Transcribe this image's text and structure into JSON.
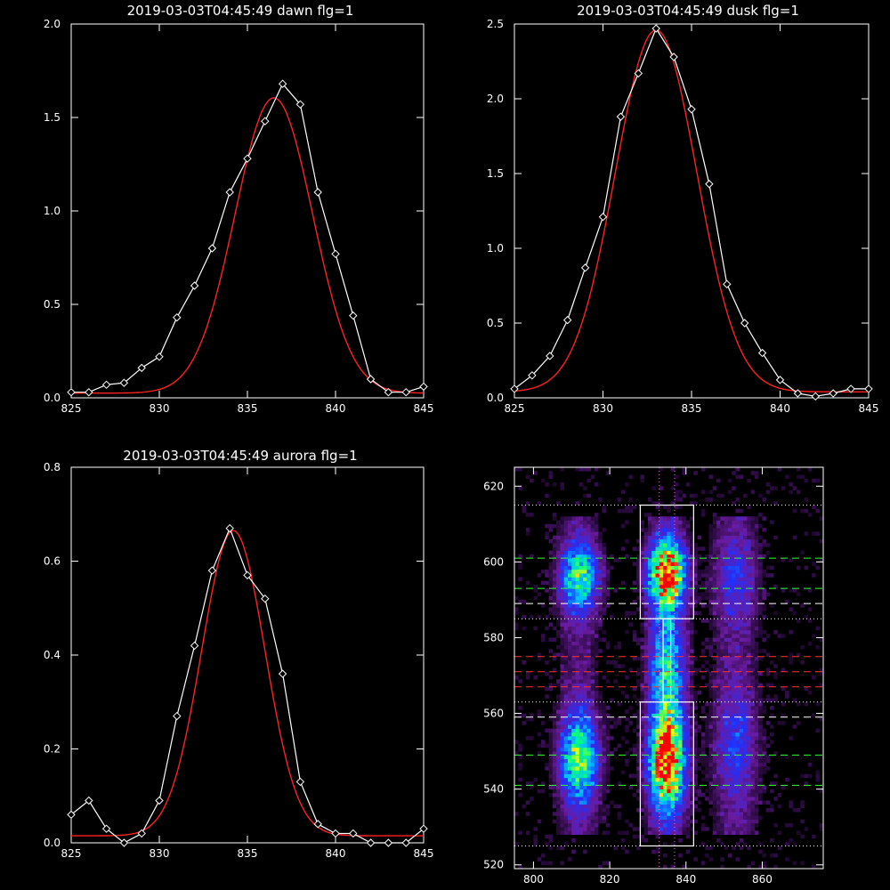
{
  "chart_data": [
    {
      "type": "line",
      "title": "2019-03-03T04:45:49 dawn flg=1",
      "xlabel": "",
      "ylabel": "",
      "xlim": [
        825,
        845
      ],
      "ylim": [
        0,
        2.0
      ],
      "xticks": [
        "825",
        "830",
        "835",
        "840",
        "845"
      ],
      "yticks": [
        "0.0",
        "0.5",
        "1.0",
        "1.5",
        "2.0"
      ],
      "grid": false,
      "series": [
        {
          "kind": "data",
          "color": "#ffffff",
          "marker": "diamond",
          "x": [
            825,
            826,
            827,
            828,
            829,
            830,
            831,
            832,
            833,
            834,
            835,
            836,
            837,
            838,
            839,
            840,
            841,
            842,
            843,
            844,
            845
          ],
          "y": [
            0.03,
            0.03,
            0.07,
            0.08,
            0.16,
            0.22,
            0.43,
            0.6,
            0.8,
            1.1,
            1.28,
            1.48,
            1.68,
            1.57,
            1.1,
            0.77,
            0.44,
            0.1,
            0.03,
            0.03,
            0.06
          ]
        },
        {
          "kind": "fit",
          "color": "#ff2020",
          "gaussian": {
            "amplitude": 1.58,
            "center": 836.5,
            "sigma": 2.2,
            "baseline": 0.025
          }
        }
      ]
    },
    {
      "type": "line",
      "title": "2019-03-03T04:45:49 dusk flg=1",
      "xlabel": "",
      "ylabel": "",
      "xlim": [
        825,
        845
      ],
      "ylim": [
        0,
        2.5
      ],
      "xticks": [
        "825",
        "830",
        "835",
        "840",
        "845"
      ],
      "yticks": [
        "0.0",
        "0.5",
        "1.0",
        "1.5",
        "2.0",
        "2.5"
      ],
      "grid": false,
      "series": [
        {
          "kind": "data",
          "color": "#ffffff",
          "marker": "diamond",
          "x": [
            825,
            826,
            827,
            828,
            829,
            830,
            831,
            832,
            833,
            834,
            835,
            836,
            837,
            838,
            839,
            840,
            841,
            842,
            843,
            844,
            845
          ],
          "y": [
            0.06,
            0.15,
            0.28,
            0.52,
            0.87,
            1.21,
            1.88,
            2.17,
            2.47,
            2.28,
            1.93,
            1.43,
            0.76,
            0.5,
            0.3,
            0.12,
            0.03,
            0.01,
            0.03,
            0.06,
            0.06
          ]
        },
        {
          "kind": "fit",
          "color": "#ff2020",
          "gaussian": {
            "amplitude": 2.42,
            "center": 833.0,
            "sigma": 2.3,
            "baseline": 0.04
          }
        }
      ]
    },
    {
      "type": "line",
      "title": "2019-03-03T04:45:49 aurora flg=1",
      "xlabel": "",
      "ylabel": "",
      "xlim": [
        825,
        845
      ],
      "ylim": [
        0,
        0.8
      ],
      "xticks": [
        "825",
        "830",
        "835",
        "840",
        "845"
      ],
      "yticks": [
        "0.0",
        "0.2",
        "0.4",
        "0.6",
        "0.8"
      ],
      "grid": false,
      "series": [
        {
          "kind": "data",
          "color": "#ffffff",
          "marker": "diamond",
          "x": [
            825,
            826,
            827,
            828,
            829,
            830,
            831,
            832,
            833,
            834,
            835,
            836,
            837,
            838,
            839,
            840,
            841,
            842,
            843,
            844,
            845
          ],
          "y": [
            0.06,
            0.09,
            0.03,
            0.0,
            0.02,
            0.09,
            0.27,
            0.42,
            0.58,
            0.67,
            0.57,
            0.52,
            0.36,
            0.13,
            0.04,
            0.02,
            0.02,
            0.0,
            0.0,
            0.0,
            0.03
          ]
        },
        {
          "kind": "fit",
          "color": "#ff2020",
          "gaussian": {
            "amplitude": 0.65,
            "center": 834.2,
            "sigma": 1.8,
            "baseline": 0.015
          }
        }
      ]
    },
    {
      "type": "heatmap",
      "title": "",
      "xlabel": "",
      "ylabel": "",
      "xlim": [
        795,
        876
      ],
      "ylim": [
        519,
        625
      ],
      "xticks": [
        "800",
        "820",
        "840",
        "860"
      ],
      "yticks": [
        "520",
        "540",
        "560",
        "580",
        "600",
        "620"
      ],
      "colormap": [
        "#000000",
        "#6a1ba0",
        "#2030ff",
        "#00c0ff",
        "#00ff80",
        "#ffff00",
        "#ff0000"
      ],
      "emission_columns": [
        {
          "center_x": 812,
          "width": 3.5,
          "bands": [
            {
              "y": 596,
              "width": 6,
              "amp": 0.55
            },
            {
              "y": 548,
              "width": 8,
              "amp": 0.6
            }
          ]
        },
        {
          "center_x": 835,
          "width": 3.2,
          "bands": [
            {
              "y": 597,
              "width": 6,
              "amp": 1.0
            },
            {
              "y": 547,
              "width": 9,
              "amp": 0.95
            },
            {
              "y": 572,
              "width": 12,
              "amp": 0.45
            }
          ]
        },
        {
          "center_x": 853,
          "width": 4,
          "bands": [
            {
              "y": 595,
              "width": 8,
              "amp": 0.18
            },
            {
              "y": 552,
              "width": 10,
              "amp": 0.2
            }
          ]
        }
      ],
      "boxes": [
        {
          "x0": 828,
          "x1": 842,
          "y0": 585,
          "y1": 615
        },
        {
          "x0": 828,
          "x1": 842,
          "y0": 525,
          "y1": 563
        },
        {
          "x0": 834,
          "x1": 836,
          "y0": 563,
          "y1": 585
        }
      ],
      "vertical_lines": [
        {
          "x": 833,
          "color": "#ff66ff",
          "style": "dotted"
        },
        {
          "x": 837,
          "color": "#ff66ff",
          "style": "dotted"
        }
      ],
      "horizontal_lines": [
        {
          "y": 615,
          "color": "#ffffff",
          "style": "dotted"
        },
        {
          "y": 601,
          "color": "#33ff33",
          "style": "dashed"
        },
        {
          "y": 593,
          "color": "#33ff33",
          "style": "dashed"
        },
        {
          "y": 589,
          "color": "#ffffff",
          "style": "dashed"
        },
        {
          "y": 585,
          "color": "#ffffff",
          "style": "dotted"
        },
        {
          "y": 575,
          "color": "#ff3333",
          "style": "dashed"
        },
        {
          "y": 571,
          "color": "#ff3333",
          "style": "dashed"
        },
        {
          "y": 567,
          "color": "#ff3333",
          "style": "dashed"
        },
        {
          "y": 563,
          "color": "#ffffff",
          "style": "dotted"
        },
        {
          "y": 559,
          "color": "#ffffff",
          "style": "dashed"
        },
        {
          "y": 549,
          "color": "#33ff33",
          "style": "dashed"
        },
        {
          "y": 541,
          "color": "#33ff33",
          "style": "dashed"
        },
        {
          "y": 525,
          "color": "#ffffff",
          "style": "dotted"
        }
      ]
    }
  ]
}
